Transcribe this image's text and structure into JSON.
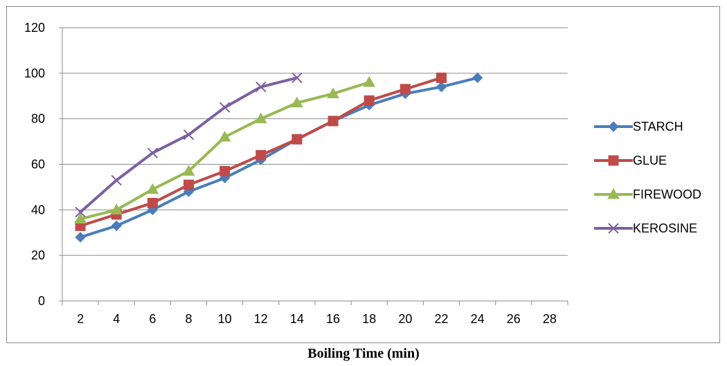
{
  "chart_data": {
    "type": "line",
    "title": "",
    "xlabel": "Boiling Time (min)",
    "ylabel": "",
    "categories": [
      "2",
      "4",
      "6",
      "8",
      "10",
      "12",
      "14",
      "16",
      "18",
      "20",
      "22",
      "24",
      "26",
      "28"
    ],
    "ylim": [
      0,
      120
    ],
    "yticks": [
      "0",
      "20",
      "40",
      "60",
      "80",
      "100",
      "120"
    ],
    "grid": "horizontal",
    "legend_position": "right",
    "series": [
      {
        "name": "STARCH",
        "color": "#4a7ebb",
        "marker": "diamond",
        "values": [
          28,
          33,
          40,
          48,
          54,
          62,
          71,
          79,
          86,
          91,
          94,
          98,
          null,
          null
        ]
      },
      {
        "name": "GLUE",
        "color": "#be4b48",
        "marker": "square",
        "values": [
          33,
          38,
          43,
          51,
          57,
          64,
          71,
          79,
          88,
          93,
          98,
          null,
          null,
          null
        ]
      },
      {
        "name": "FIREWOOD",
        "color": "#98b954",
        "marker": "triangle",
        "values": [
          36,
          40,
          49,
          57,
          72,
          80,
          87,
          91,
          96,
          null,
          null,
          null,
          null,
          null
        ]
      },
      {
        "name": "KEROSINE",
        "color": "#7d60a0",
        "marker": "x",
        "values": [
          39,
          53,
          65,
          73,
          85,
          94,
          98,
          null,
          null,
          null,
          null,
          null,
          null,
          null
        ]
      }
    ]
  }
}
